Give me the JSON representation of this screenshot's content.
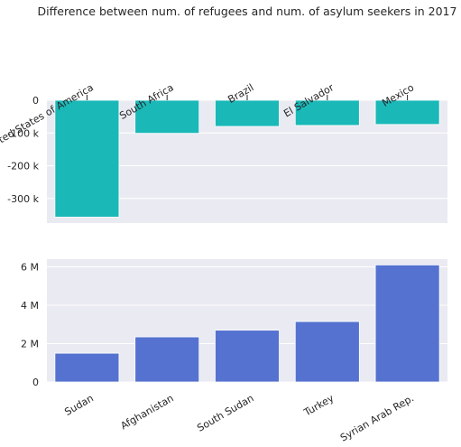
{
  "chart_data": [
    {
      "type": "bar",
      "title": "Difference between num. of refugees and num. of asylum seekers in 2017",
      "xlabel": "",
      "ylabel": "",
      "categories": [
        "United States of America",
        "South Africa",
        "Brazil",
        "El Salvador",
        "Mexico"
      ],
      "values": [
        -357000,
        -101000,
        -80000,
        -77000,
        -74000
      ],
      "ylim": [
        -375000,
        0
      ],
      "yticks": [
        0,
        -100000,
        -200000,
        -300000
      ],
      "ytick_labels": [
        "0",
        "-100 k",
        "-200 k",
        "-300 k"
      ],
      "category_labels_position": "top",
      "grid": true,
      "color": "#1bb8b8"
    },
    {
      "type": "bar",
      "xlabel": "",
      "ylabel": "",
      "categories": [
        "Sudan",
        "Afghanistan",
        "South Sudan",
        "Turkey",
        "Syrian Arab Rep."
      ],
      "values": [
        1500000,
        2350000,
        2700000,
        3150000,
        6100000
      ],
      "ylim": [
        0,
        6400000
      ],
      "yticks": [
        0,
        2000000,
        4000000,
        6000000
      ],
      "ytick_labels": [
        "0",
        "2 M",
        "4 M",
        "6 M"
      ],
      "category_labels_position": "bottom",
      "grid": true,
      "color": "#5572d0"
    }
  ]
}
